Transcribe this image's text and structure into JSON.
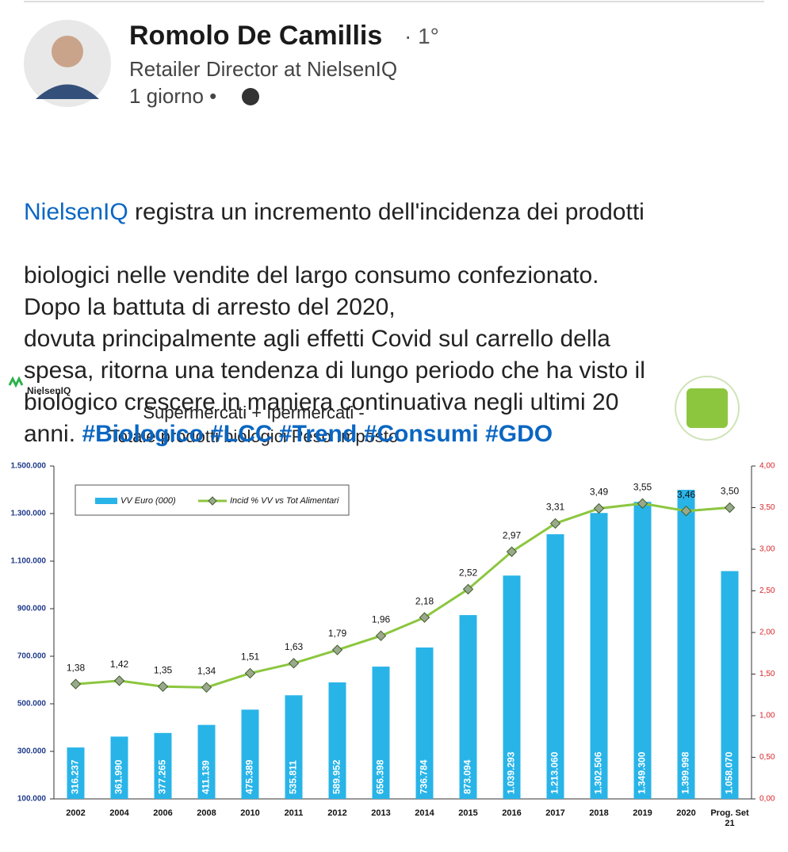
{
  "post": {
    "author": "Romolo De Camillis",
    "degree": "· 1°",
    "headline": "Retailer Director at NielsenIQ",
    "time": "1 giorno •",
    "body": {
      "mention": "NielsenIQ",
      "first_line_rest": " registra un incremento dell'incidenza dei prodotti",
      "lines": [
        "biologici nelle vendite del largo consumo confezionato.",
        "Dopo la battuta di arresto del 2020,",
        "dovuta principalmente agli effetti Covid sul carrello della",
        "spesa, ritorna una tendenza di lungo periodo che ha visto il",
        "biologico crescere in maniera continuativa negli ultimi 20"
      ],
      "last_line_start": "anni.",
      "hashtags": [
        "#Biologico",
        "#LCC",
        "#Trend",
        "#Consumi",
        "#GDO"
      ]
    }
  },
  "chart_data": {
    "type": "combo",
    "logo": "NielsenIQ",
    "title": [
      "Supermercati + Ipermercati -",
      "Totale prodotti biologici Peso Imposto"
    ],
    "categories": [
      "2002",
      "2004",
      "2006",
      "2008",
      "2010",
      "2011",
      "2012",
      "2013",
      "2014",
      "2015",
      "2016",
      "2017",
      "2018",
      "2019",
      "2020",
      "Prog. Set 21"
    ],
    "ylim": [
      100000,
      1500000
    ],
    "yticks": [
      {
        "value": 100000,
        "label": "100.000"
      },
      {
        "value": 300000,
        "label": "300.000"
      },
      {
        "value": 500000,
        "label": "500.000"
      },
      {
        "value": 700000,
        "label": "700.000"
      },
      {
        "value": 900000,
        "label": "900.000"
      },
      {
        "value": 1100000,
        "label": "1.100.000"
      },
      {
        "value": 1300000,
        "label": "1.300.000"
      },
      {
        "value": 1500000,
        "label": "1.500.000"
      }
    ],
    "y2lim": [
      0,
      4
    ],
    "y2ticks": [
      {
        "value": 0,
        "label": "0,00"
      },
      {
        "value": 0.5,
        "label": "0,50"
      },
      {
        "value": 1,
        "label": "1,00"
      },
      {
        "value": 1.5,
        "label": "1,50"
      },
      {
        "value": 2,
        "label": "2,00"
      },
      {
        "value": 2.5,
        "label": "2,50"
      },
      {
        "value": 3,
        "label": "3,00"
      },
      {
        "value": 3.5,
        "label": "3,50"
      },
      {
        "value": 4,
        "label": "4,00"
      }
    ],
    "series": [
      {
        "name": "VV Euro (000)",
        "type": "bar",
        "color": "#29b4e8",
        "values": [
          316237,
          361990,
          377265,
          411139,
          475389,
          535811,
          589952,
          656398,
          736784,
          873094,
          1039293,
          1213060,
          1302506,
          1349300,
          1399998,
          1058070
        ],
        "value_labels": [
          "316.237",
          "361.990",
          "377.265",
          "411.139",
          "475.389",
          "535.811",
          "589.952",
          "656.398",
          "736.784",
          "873.094",
          "1.039.293",
          "1.213.060",
          "1.302.506",
          "1.349.300",
          "1.399.998",
          "1.058.070"
        ]
      },
      {
        "name": "Incid % VV vs Tot Alimentari",
        "type": "line",
        "axis": "y2",
        "color": "#8cc63f",
        "values": [
          1.38,
          1.42,
          1.35,
          1.34,
          1.51,
          1.63,
          1.79,
          1.96,
          2.18,
          2.52,
          2.97,
          3.31,
          3.49,
          3.55,
          3.46,
          3.5
        ],
        "value_labels": [
          "1,38",
          "1,42",
          "1,35",
          "1,34",
          "1,51",
          "1,63",
          "1,79",
          "1,96",
          "2,18",
          "2,52",
          "2,97",
          "3,31",
          "3,49",
          "3,55",
          "3,46",
          "3,50"
        ]
      }
    ]
  }
}
